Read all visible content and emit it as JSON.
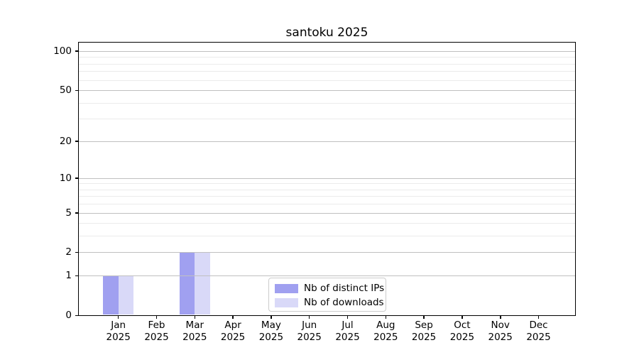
{
  "chart_data": {
    "type": "bar",
    "title": "santoku 2025",
    "categories": [
      "Jan",
      "Feb",
      "Mar",
      "Apr",
      "May",
      "Jun",
      "Jul",
      "Aug",
      "Sep",
      "Oct",
      "Nov",
      "Dec"
    ],
    "category_year": "2025",
    "series": [
      {
        "name": "Nb of distinct IPs",
        "color": "#a0a0f0",
        "values": [
          1,
          0,
          2,
          0,
          0,
          0,
          0,
          0,
          0,
          0,
          0,
          0
        ]
      },
      {
        "name": "Nb of downloads",
        "color": "#d9d9f8",
        "values": [
          1,
          0,
          2,
          0,
          0,
          0,
          0,
          0,
          0,
          0,
          0,
          0
        ]
      }
    ],
    "xlabel": "",
    "ylabel": "",
    "yscale": "log1p",
    "yticks": [
      0,
      1,
      2,
      5,
      10,
      20,
      50,
      100
    ],
    "minor_yticks": [
      3,
      4,
      6,
      7,
      8,
      9,
      30,
      40,
      60,
      70,
      80,
      90
    ],
    "ylim": [
      0,
      116
    ],
    "grid": true,
    "legend_position": "lower center"
  },
  "colors": {
    "major_grid": "#c0c0c0",
    "minor_grid": "#ebebeb",
    "spine": "#000000",
    "legend_border": "#cccccc",
    "background": "#ffffff"
  }
}
